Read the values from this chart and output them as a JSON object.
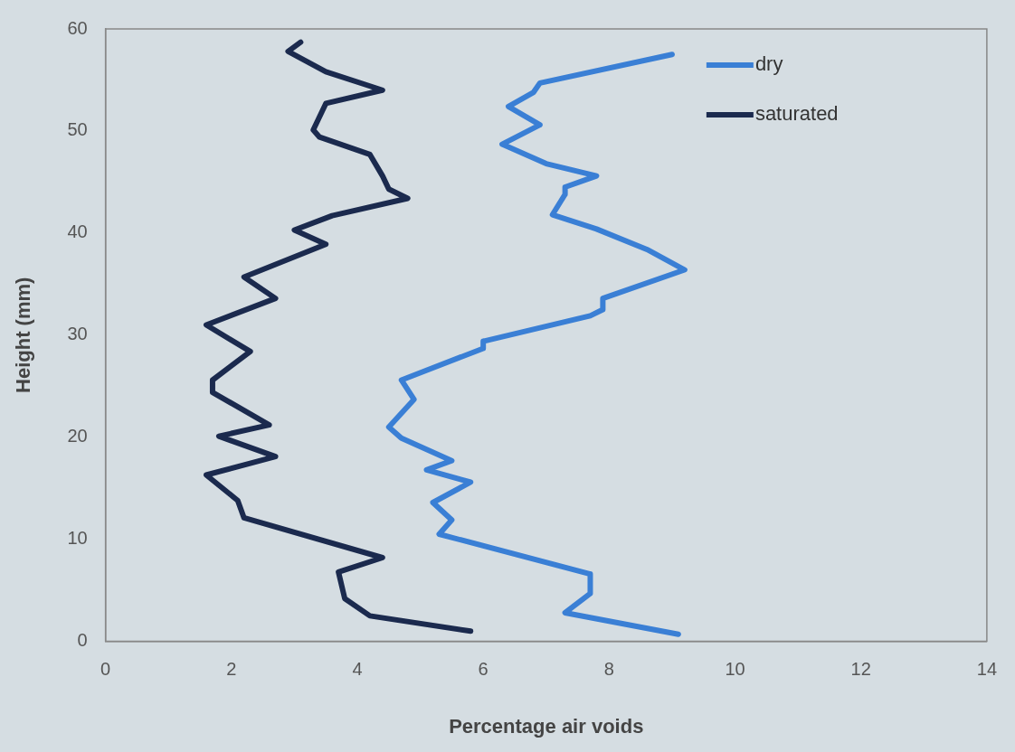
{
  "chart_data": {
    "type": "line",
    "xlabel": "Percentage air voids",
    "ylabel": "Height (mm)",
    "xlim": [
      0,
      14
    ],
    "xticks": [
      0,
      2,
      4,
      6,
      8,
      10,
      12,
      14
    ],
    "ylim": [
      0,
      60
    ],
    "yticks": [
      0,
      10,
      20,
      30,
      40,
      50,
      60
    ],
    "grid": false,
    "legend": "top right",
    "marker": "none",
    "line_style": "solid",
    "series": [
      {
        "name": "dry",
        "color": "#3a7fd5",
        "x": [
          9.0,
          6.9,
          6.8,
          6.4,
          6.9,
          6.3,
          7.0,
          7.8,
          7.3,
          7.3,
          7.1,
          7.8,
          8.6,
          9.2,
          7.9,
          7.9,
          7.7,
          6.0,
          6.0,
          4.7,
          4.9,
          4.5,
          4.7,
          5.5,
          5.1,
          5.8,
          5.2,
          5.5,
          5.3,
          7.7,
          7.7,
          7.3,
          9.1
        ],
        "values": [
          57.5,
          54.7,
          53.8,
          52.4,
          50.6,
          48.7,
          46.8,
          45.6,
          44.5,
          43.8,
          41.8,
          40.4,
          38.4,
          36.4,
          33.6,
          32.5,
          31.9,
          29.4,
          28.7,
          25.6,
          23.7,
          21.0,
          19.9,
          17.7,
          16.8,
          15.6,
          13.6,
          11.9,
          10.5,
          6.6,
          4.7,
          2.8,
          0.7
        ]
      },
      {
        "name": "saturated",
        "color": "#1b2a4e",
        "x": [
          3.1,
          2.9,
          3.5,
          4.4,
          3.5,
          3.3,
          3.4,
          4.2,
          4.4,
          4.5,
          4.8,
          3.6,
          3.0,
          3.5,
          2.2,
          2.7,
          1.6,
          2.3,
          1.7,
          1.7,
          2.6,
          1.8,
          2.7,
          1.6,
          2.1,
          2.2,
          4.4,
          3.7,
          3.8,
          4.2,
          5.8
        ],
        "values": [
          58.7,
          57.8,
          55.8,
          54.0,
          52.7,
          50.1,
          49.4,
          47.7,
          45.6,
          44.3,
          43.4,
          41.7,
          40.3,
          38.9,
          35.7,
          33.6,
          31.0,
          28.4,
          25.6,
          24.4,
          21.2,
          20.1,
          18.1,
          16.3,
          13.8,
          12.1,
          8.2,
          6.8,
          4.2,
          2.5,
          1.0
        ]
      }
    ]
  }
}
